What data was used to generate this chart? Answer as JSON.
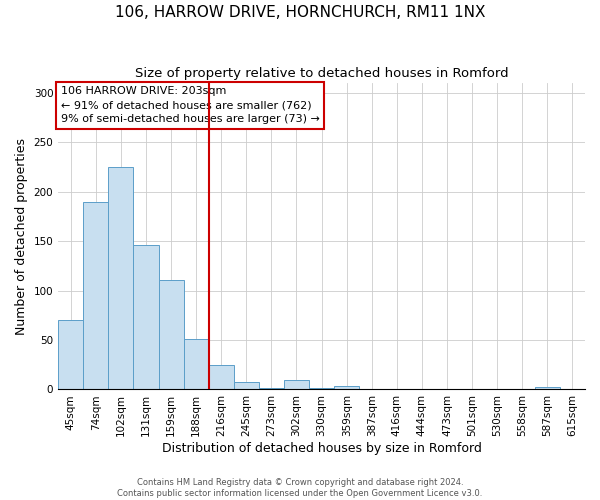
{
  "title": "106, HARROW DRIVE, HORNCHURCH, RM11 1NX",
  "subtitle": "Size of property relative to detached houses in Romford",
  "xlabel": "Distribution of detached houses by size in Romford",
  "ylabel": "Number of detached properties",
  "bar_labels": [
    "45sqm",
    "74sqm",
    "102sqm",
    "131sqm",
    "159sqm",
    "188sqm",
    "216sqm",
    "245sqm",
    "273sqm",
    "302sqm",
    "330sqm",
    "359sqm",
    "387sqm",
    "416sqm",
    "444sqm",
    "473sqm",
    "501sqm",
    "530sqm",
    "558sqm",
    "587sqm",
    "615sqm"
  ],
  "bar_values": [
    70,
    190,
    225,
    146,
    111,
    51,
    25,
    8,
    1,
    10,
    1,
    4,
    0,
    0,
    0,
    0,
    0,
    0,
    0,
    2,
    0
  ],
  "bar_color": "#c8dff0",
  "bar_edge_color": "#5b9ec9",
  "vline_x": 5.5,
  "vline_color": "#cc0000",
  "annotation_title": "106 HARROW DRIVE: 203sqm",
  "annotation_line1": "← 91% of detached houses are smaller (762)",
  "annotation_line2": "9% of semi-detached houses are larger (73) →",
  "annotation_box_color": "#ffffff",
  "annotation_box_edge": "#cc0000",
  "ylim": [
    0,
    310
  ],
  "yticks": [
    0,
    50,
    100,
    150,
    200,
    250,
    300
  ],
  "footer1": "Contains HM Land Registry data © Crown copyright and database right 2024.",
  "footer2": "Contains public sector information licensed under the Open Government Licence v3.0.",
  "background_color": "#ffffff",
  "grid_color": "#cccccc",
  "title_fontsize": 11,
  "subtitle_fontsize": 9.5,
  "xlabel_fontsize": 9,
  "ylabel_fontsize": 9,
  "tick_fontsize": 7.5,
  "annotation_fontsize": 8,
  "footer_fontsize": 6
}
